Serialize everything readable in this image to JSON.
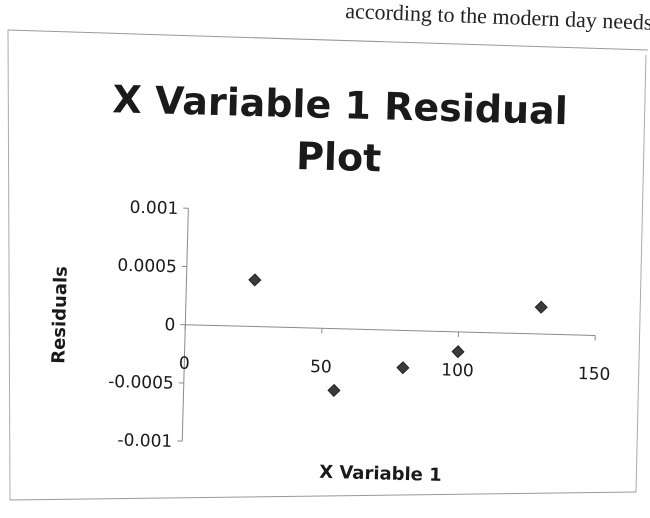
{
  "page": {
    "scan_text": "according to the modern day needs."
  },
  "chart_data": {
    "type": "scatter",
    "title_line1": "X Variable 1  Residual",
    "title_line2": "Plot",
    "xlabel": "X Variable 1",
    "ylabel": "Residuals",
    "xlim": [
      0,
      150
    ],
    "ylim": [
      -0.001,
      0.001
    ],
    "x_ticks": [
      0,
      50,
      100,
      150
    ],
    "y_ticks": [
      0.001,
      0.0005,
      0,
      -0.0005,
      -0.001
    ],
    "x_tick_labels": [
      "0",
      "50",
      "100",
      "150"
    ],
    "y_tick_labels": [
      "0.001",
      "0.0005",
      "0",
      "-0.0005",
      "-0.001"
    ],
    "grid": false,
    "marker": "diamond",
    "marker_color": "#3a3a3a",
    "points": [
      {
        "x": 25,
        "y": 0.0004
      },
      {
        "x": 55,
        "y": -0.00053
      },
      {
        "x": 80,
        "y": -0.00032
      },
      {
        "x": 100,
        "y": -0.00017
      },
      {
        "x": 130,
        "y": 0.00023
      }
    ]
  }
}
